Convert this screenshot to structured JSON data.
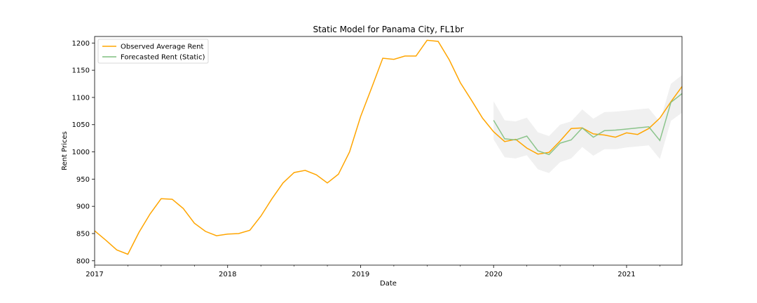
{
  "chart_data": {
    "type": "line",
    "title": "Static Model for Panama City, FL1br",
    "xlabel": "Date",
    "ylabel": "Rent Prices",
    "xlim": [
      2017.0,
      2021.4167
    ],
    "ylim": [
      792,
      1212
    ],
    "x_ticks": [
      {
        "value": 2017,
        "label": "2017"
      },
      {
        "value": 2018,
        "label": "2018"
      },
      {
        "value": 2019,
        "label": "2019"
      },
      {
        "value": 2020,
        "label": "2020"
      },
      {
        "value": 2021,
        "label": "2021"
      }
    ],
    "y_ticks": [
      800,
      850,
      900,
      950,
      1000,
      1050,
      1100,
      1150,
      1200
    ],
    "legend_position": "top-left",
    "series": [
      {
        "name": "Observed Average Rent",
        "color": "#ffa500",
        "x": [
          2017.0,
          2017.0833,
          2017.1667,
          2017.25,
          2017.3333,
          2017.4167,
          2017.5,
          2017.5833,
          2017.6667,
          2017.75,
          2017.8333,
          2017.9167,
          2018.0,
          2018.0833,
          2018.1667,
          2018.25,
          2018.3333,
          2018.4167,
          2018.5,
          2018.5833,
          2018.6667,
          2018.75,
          2018.8333,
          2018.9167,
          2019.0,
          2019.0833,
          2019.1667,
          2019.25,
          2019.3333,
          2019.4167,
          2019.5,
          2019.5833,
          2019.6667,
          2019.75,
          2019.8333,
          2019.9167,
          2020.0,
          2020.0833,
          2020.1667,
          2020.25,
          2020.3333,
          2020.4167,
          2020.5,
          2020.5833,
          2020.6667,
          2020.75,
          2020.8333,
          2020.9167,
          2021.0,
          2021.0833,
          2021.1667,
          2021.25,
          2021.3333,
          2021.4167
        ],
        "values": [
          855,
          838,
          820,
          812,
          852,
          886,
          914,
          913,
          896,
          869,
          854,
          846,
          849,
          850,
          856,
          882,
          914,
          943,
          962,
          966,
          958,
          943,
          959,
          1000,
          1065,
          1118,
          1172,
          1170,
          1176,
          1176,
          1205,
          1203,
          1169,
          1127,
          1095,
          1062,
          1037,
          1019,
          1023,
          1007,
          996,
          999,
          1020,
          1043,
          1044,
          1033,
          1031,
          1027,
          1035,
          1032,
          1043,
          1062,
          1092,
          1120
        ]
      },
      {
        "name": "Forecasted Rent (Static)",
        "color": "#7fbf7f",
        "x": [
          2020.0,
          2020.0833,
          2020.1667,
          2020.25,
          2020.3333,
          2020.4167,
          2020.5,
          2020.5833,
          2020.6667,
          2020.75,
          2020.8333,
          2020.9167,
          2021.0,
          2021.0833,
          2021.1667,
          2021.25,
          2021.3333,
          2021.4167
        ],
        "values": [
          1058,
          1024,
          1022,
          1029,
          1002,
          995,
          1016,
          1022,
          1044,
          1027,
          1039,
          1040,
          1042,
          1044,
          1046,
          1021,
          1091,
          1107
        ],
        "lower": [
          1023,
          990,
          988,
          994,
          968,
          961,
          981,
          988,
          1009,
          993,
          1005,
          1005,
          1008,
          1010,
          1012,
          987,
          1057,
          1072
        ],
        "upper": [
          1093,
          1058,
          1056,
          1063,
          1036,
          1029,
          1050,
          1056,
          1078,
          1061,
          1073,
          1074,
          1076,
          1078,
          1080,
          1055,
          1125,
          1141
        ]
      }
    ]
  }
}
